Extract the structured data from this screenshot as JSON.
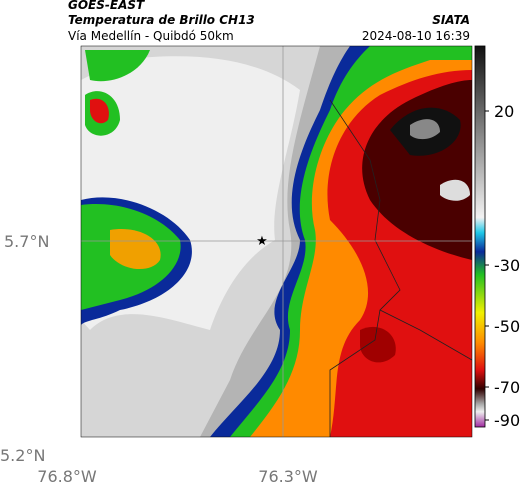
{
  "header": {
    "title": "GOES-EAST",
    "subtitle": "Temperatura de Brillo CH13",
    "route": "Vía Medellín - Quibdó 50km",
    "source": "SIATA",
    "datetime": "2024-08-10 16:39"
  },
  "map": {
    "lat_labels": [
      "5.7°N",
      "5.2°N"
    ],
    "lon_labels": [
      "76.8°W",
      "76.3°W"
    ]
  },
  "colorbar": {
    "ticks": [
      20,
      -30,
      -50,
      -70,
      -90
    ]
  }
}
